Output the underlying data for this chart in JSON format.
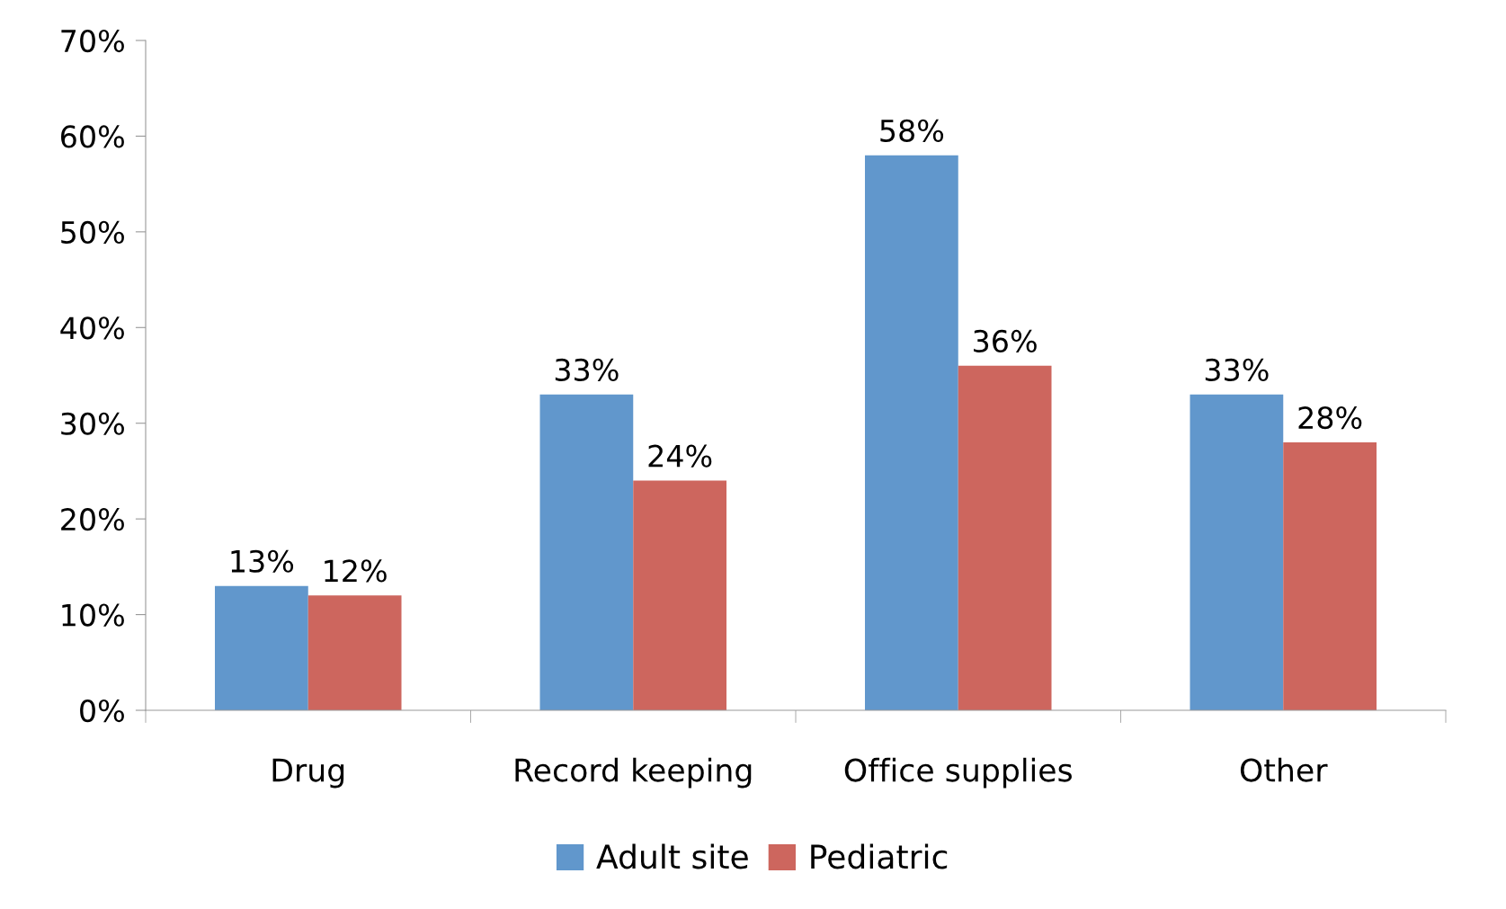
{
  "chart_data": {
    "type": "bar",
    "categories": [
      "Drug",
      "Record keeping",
      "Office supplies",
      "Other"
    ],
    "series": [
      {
        "name": "Adult site",
        "color": "#6197cc",
        "values": [
          13,
          33,
          58,
          33
        ],
        "value_labels": [
          "13%",
          "33%",
          "58%",
          "33%"
        ]
      },
      {
        "name": "Pediatric",
        "color": "#cd665e",
        "values": [
          12,
          24,
          36,
          28
        ],
        "value_labels": [
          "12%",
          "24%",
          "36%",
          "28%"
        ]
      }
    ],
    "ylim": [
      0,
      70
    ],
    "yticks": [
      {
        "value": 0,
        "label": "0%"
      },
      {
        "value": 10,
        "label": "10%"
      },
      {
        "value": 20,
        "label": "20%"
      },
      {
        "value": 30,
        "label": "30%"
      },
      {
        "value": 40,
        "label": "40%"
      },
      {
        "value": 50,
        "label": "50%"
      },
      {
        "value": 60,
        "label": "60%"
      },
      {
        "value": 70,
        "label": "70%"
      }
    ],
    "legend": "bottom",
    "grid": false
  }
}
